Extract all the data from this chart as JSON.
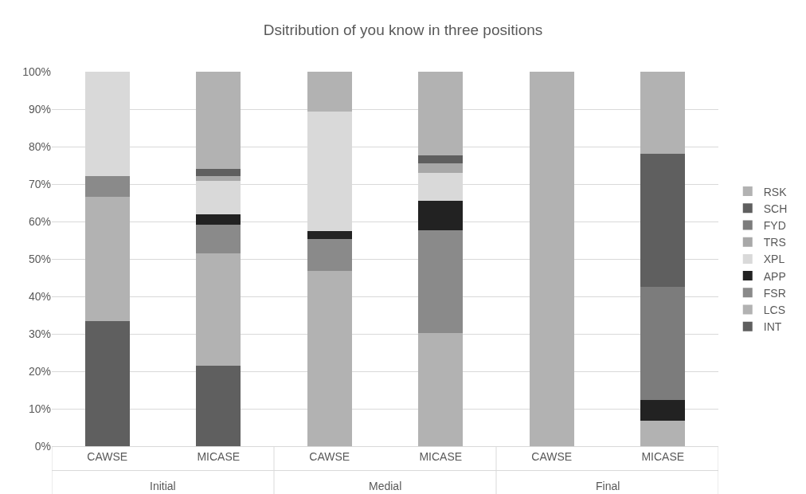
{
  "chart_data": {
    "type": "bar",
    "stacked": true,
    "title": "Dsitribution of you know in three positions",
    "categories": [
      "CAWSE",
      "MICASE",
      "CAWSE",
      "MICASE",
      "CAWSE",
      "MICASE"
    ],
    "annotations": [
      "Initial",
      "Medial",
      "Final"
    ],
    "series": [
      {
        "name": "INT",
        "color": "#5f5f5f",
        "values": [
          33.3,
          21.4,
          0,
          0,
          0,
          0
        ]
      },
      {
        "name": "LCS",
        "color": "#b2b2b2",
        "values": [
          33.3,
          30.1,
          46.9,
          30.3,
          100,
          6.9
        ]
      },
      {
        "name": "FSR",
        "color": "#8a8a8a",
        "values": [
          5.6,
          7.7,
          8.4,
          27.3,
          0,
          0
        ]
      },
      {
        "name": "APP",
        "color": "#222222",
        "values": [
          0,
          2.7,
          2.1,
          8.0,
          0,
          5.4
        ]
      },
      {
        "name": "XPL",
        "color": "#d9d9d9",
        "values": [
          27.8,
          9.0,
          32.0,
          7.3,
          0,
          0
        ]
      },
      {
        "name": "TRS",
        "color": "#a8a8a8",
        "values": [
          0,
          1.3,
          0,
          2.6,
          0,
          0
        ]
      },
      {
        "name": "FYD",
        "color": "#7c7c7c",
        "values": [
          0,
          0,
          0,
          0,
          0,
          30.2
        ]
      },
      {
        "name": "SCH",
        "color": "#5f5f5f",
        "values": [
          0,
          1.9,
          0,
          2.1,
          0,
          35.5
        ]
      },
      {
        "name": "RSK",
        "color": "#b2b2b2",
        "values": [
          0,
          25.9,
          10.6,
          22.4,
          0,
          22.0
        ]
      }
    ],
    "ylim": [
      0,
      100
    ],
    "yticks": [
      {
        "value": 0,
        "label": "0%"
      },
      {
        "value": 10,
        "label": "10%"
      },
      {
        "value": 20,
        "label": "20%"
      },
      {
        "value": 30,
        "label": "30%"
      },
      {
        "value": 40,
        "label": "40%"
      },
      {
        "value": 50,
        "label": "50%"
      },
      {
        "value": 60,
        "label": "60%"
      },
      {
        "value": 70,
        "label": "70%"
      },
      {
        "value": 80,
        "label": "80%"
      },
      {
        "value": 90,
        "label": "90%"
      },
      {
        "value": 100,
        "label": "100%"
      }
    ],
    "grid": "y",
    "legend": "right"
  }
}
